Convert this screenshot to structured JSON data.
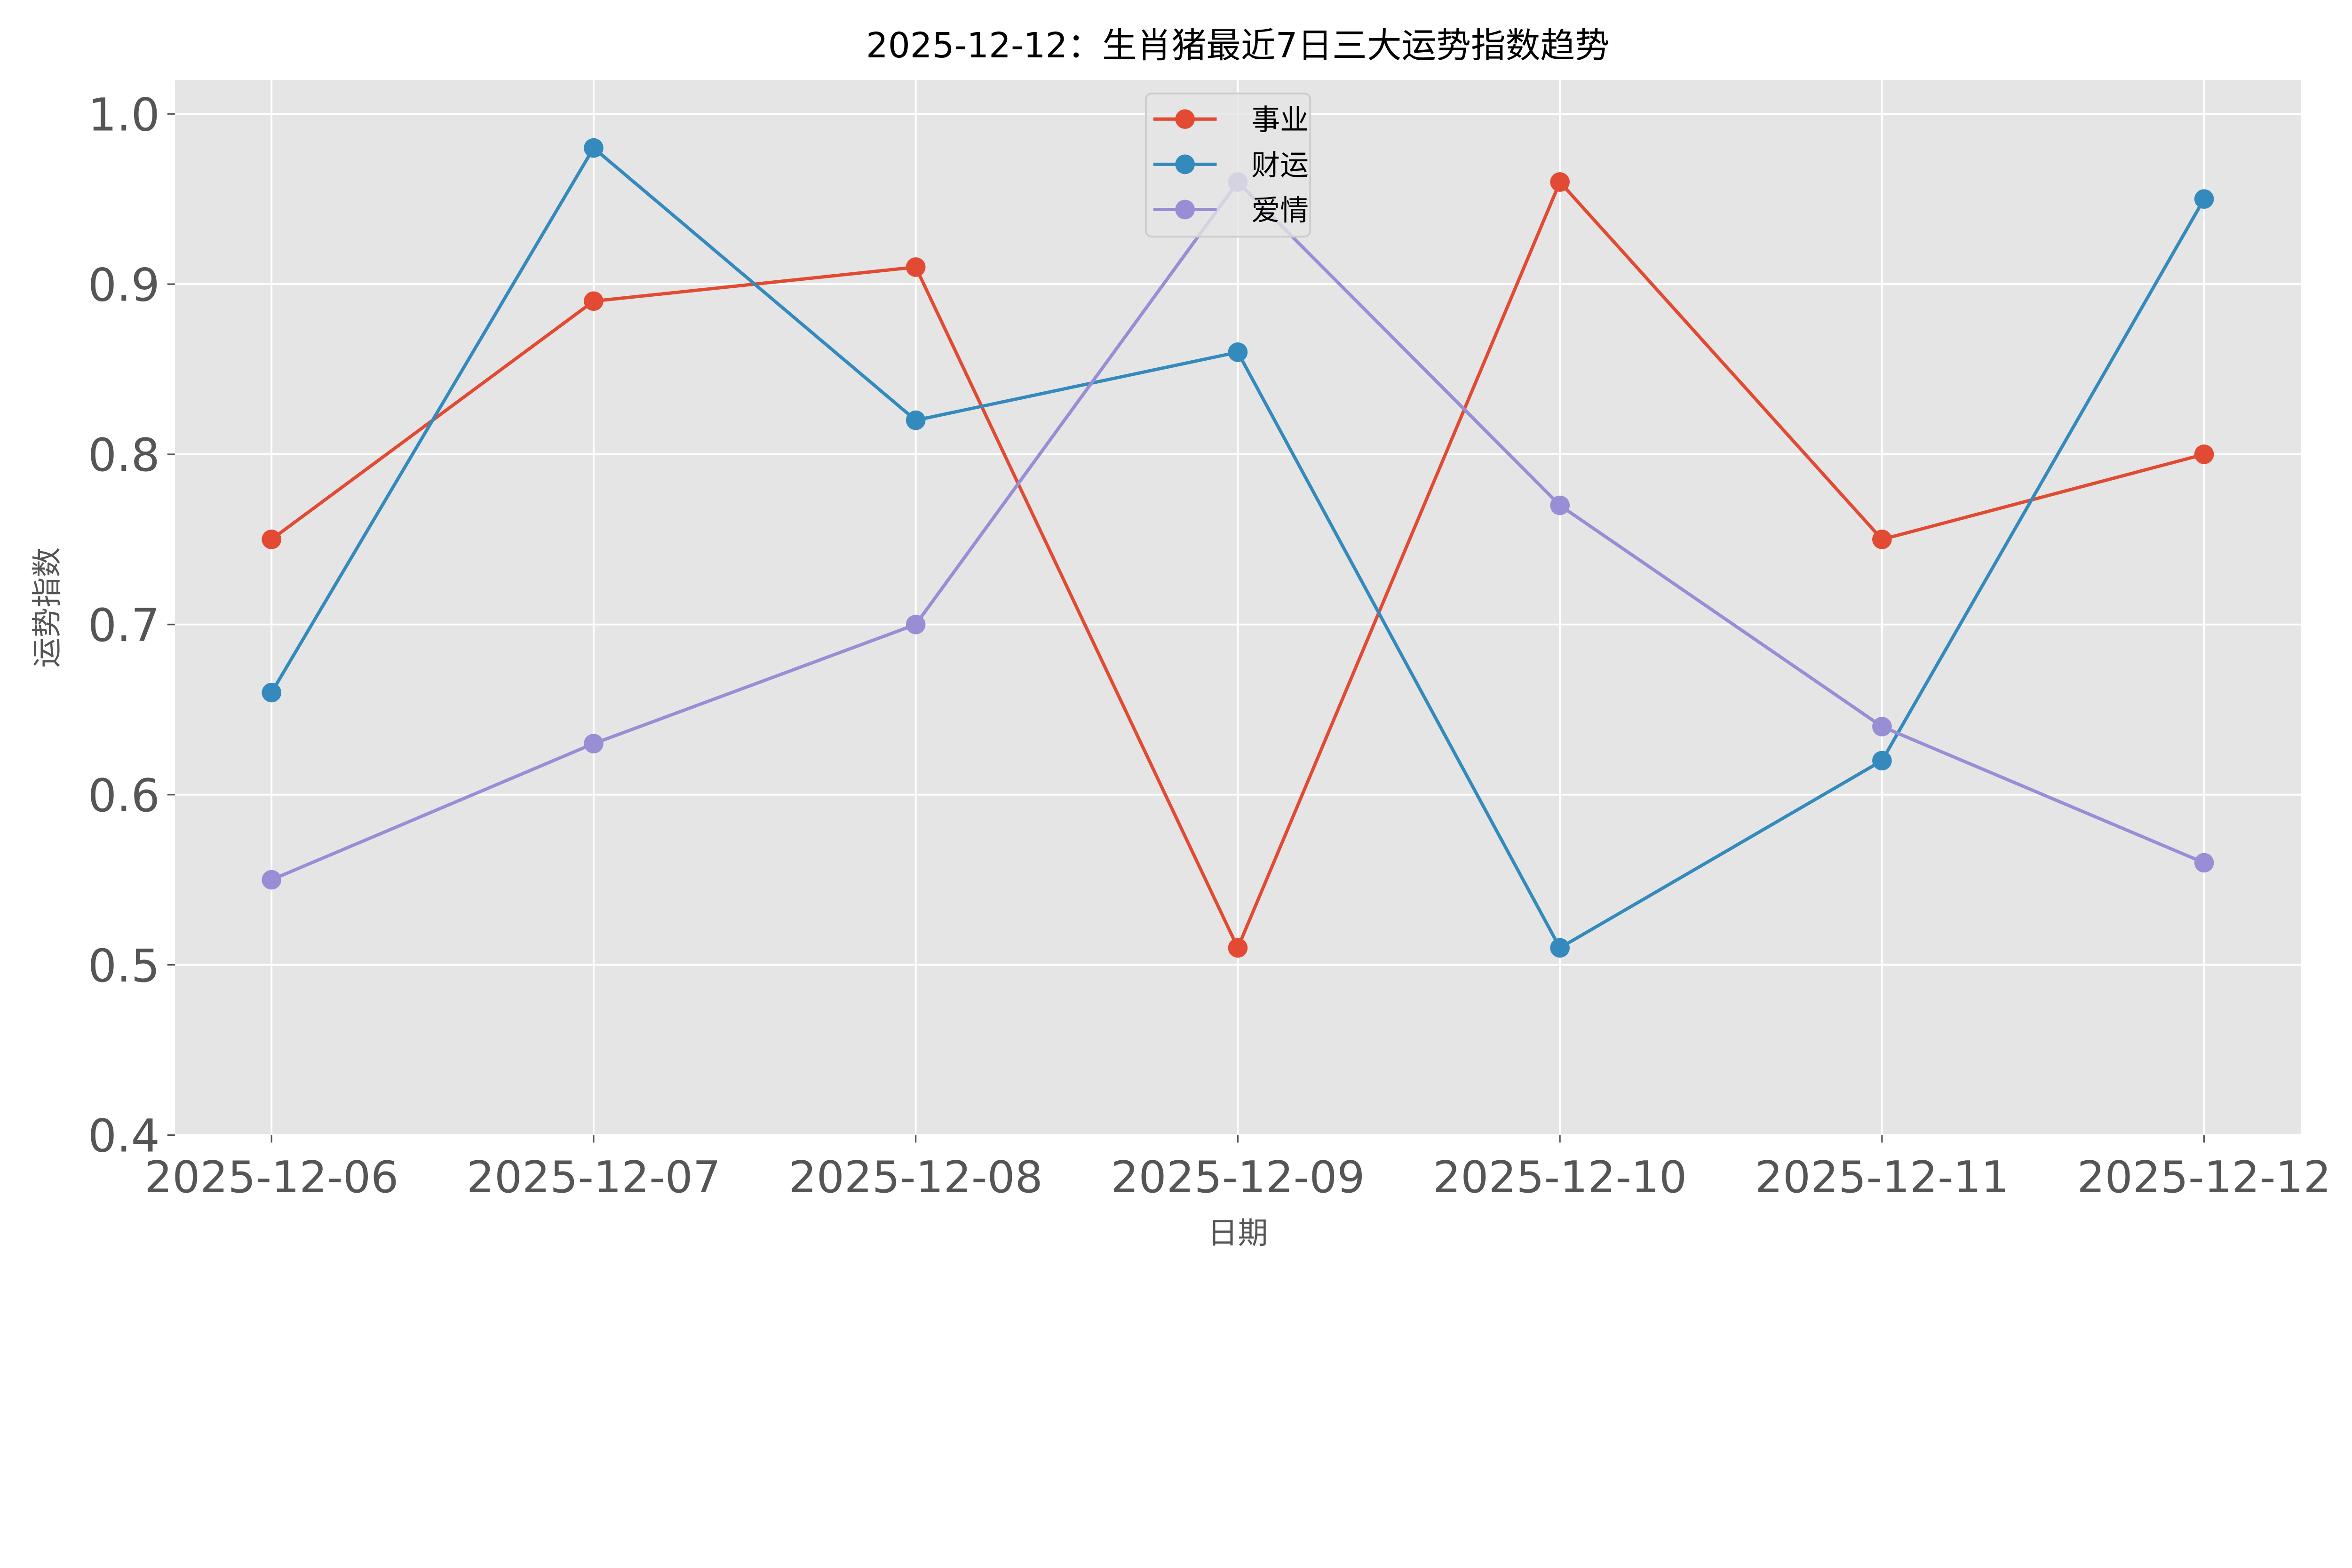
{
  "chart_data": {
    "type": "line",
    "title": "2025-12-12：生肖猪最近7日三大运势指数趋势",
    "xlabel": "日期",
    "ylabel": "运势指数",
    "categories": [
      "2025-12-06",
      "2025-12-07",
      "2025-12-08",
      "2025-12-09",
      "2025-12-10",
      "2025-12-11",
      "2025-12-12"
    ],
    "ylim": [
      0.4,
      1.02
    ],
    "yticks": [
      "0.4",
      "0.5",
      "0.6",
      "0.7",
      "0.8",
      "0.9",
      "1.0"
    ],
    "grid": true,
    "legend_position": "top-center",
    "background": "#E5E5E5",
    "series": [
      {
        "name": "事业",
        "color": "#E24A33",
        "values": [
          0.75,
          0.89,
          0.91,
          0.51,
          0.96,
          0.75,
          0.8
        ]
      },
      {
        "name": "财运",
        "color": "#348ABD",
        "values": [
          0.66,
          0.98,
          0.82,
          0.86,
          0.51,
          0.62,
          0.95
        ]
      },
      {
        "name": "爱情",
        "color": "#988ED5",
        "values": [
          0.55,
          0.63,
          0.7,
          0.96,
          0.77,
          0.64,
          0.56
        ]
      }
    ]
  }
}
